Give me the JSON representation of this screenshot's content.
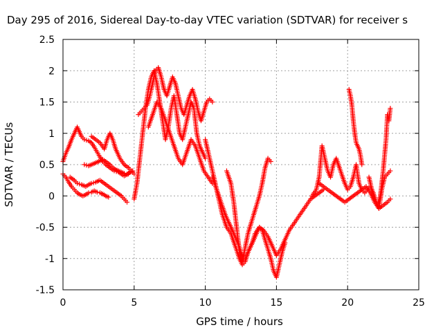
{
  "chart_data": {
    "type": "scatter",
    "title": "Day 295 of 2016, Sidereal Day-to-day VTEC variation (SDTVAR) for receiver s",
    "xlabel": "GPS time / hours",
    "ylabel": "SDTVAR / TECUs",
    "xlim": [
      0,
      25
    ],
    "ylim": [
      -1.5,
      2.5
    ],
    "xticks": [
      "0",
      "5",
      "10",
      "15",
      "20",
      "25"
    ],
    "yticks": [
      "-1.5",
      "-1",
      "-0.5",
      "0",
      "0.5",
      "1",
      "1.5",
      "2",
      "2.5"
    ],
    "grid": true,
    "marker": "plus",
    "color": "#ff0000",
    "series": [
      {
        "x": [
          0.0,
          0.2,
          0.4,
          0.6,
          0.8,
          1.0,
          1.1,
          1.3,
          1.5,
          1.8,
          2.0,
          2.2,
          2.4,
          2.6,
          2.8,
          3.0,
          3.3,
          3.6,
          3.9,
          4.1,
          4.3,
          4.6,
          4.8,
          5.0
        ],
        "y": [
          0.55,
          0.68,
          0.78,
          0.9,
          1.0,
          1.1,
          1.05,
          0.95,
          0.9,
          0.88,
          0.85,
          0.78,
          0.7,
          0.62,
          0.55,
          0.5,
          0.45,
          0.4,
          0.38,
          0.35,
          0.32,
          0.35,
          0.4,
          0.35
        ]
      },
      {
        "x": [
          0.0,
          0.2,
          0.4,
          0.6,
          0.8,
          1.0,
          1.2,
          1.4,
          1.6,
          1.8,
          2.0,
          2.2,
          2.4,
          2.6,
          2.8,
          3.0,
          3.2
        ],
        "y": [
          0.35,
          0.3,
          0.22,
          0.15,
          0.1,
          0.05,
          0.02,
          0.0,
          0.02,
          0.05,
          0.06,
          0.08,
          0.06,
          0.05,
          0.03,
          0.0,
          -0.02
        ]
      },
      {
        "x": [
          0.5,
          0.8,
          1.0,
          1.3,
          1.6,
          1.8,
          2.0,
          2.3,
          2.6,
          2.9,
          3.2,
          3.5,
          3.8,
          4.1,
          4.3,
          4.5
        ],
        "y": [
          0.3,
          0.25,
          0.2,
          0.18,
          0.15,
          0.18,
          0.2,
          0.22,
          0.25,
          0.2,
          0.15,
          0.1,
          0.05,
          0.0,
          -0.05,
          -0.1
        ]
      },
      {
        "x": [
          1.5,
          1.8,
          2.0,
          2.2,
          2.5,
          2.8,
          3.0,
          3.3,
          3.5,
          3.7,
          3.9,
          4.1,
          4.3,
          4.5,
          4.7,
          4.9
        ],
        "y": [
          0.5,
          0.48,
          0.5,
          0.52,
          0.55,
          0.58,
          0.55,
          0.5,
          0.45,
          0.42,
          0.4,
          0.38,
          0.36,
          0.35,
          0.38,
          0.4
        ]
      },
      {
        "x": [
          2.0,
          2.3,
          2.6,
          2.9,
          3.1,
          3.3,
          3.5,
          3.7,
          4.0,
          4.3,
          4.6,
          4.8
        ],
        "y": [
          0.95,
          0.9,
          0.85,
          0.75,
          0.9,
          1.0,
          0.9,
          0.75,
          0.6,
          0.5,
          0.45,
          0.4
        ]
      },
      {
        "x": [
          5.0,
          5.2,
          5.4,
          5.6,
          5.8,
          6.0,
          6.2,
          6.4,
          6.6,
          6.8,
          7.0,
          7.2,
          7.4,
          7.6,
          7.8,
          8.0,
          8.2,
          8.4,
          8.6,
          8.8,
          9.0,
          9.2,
          9.4,
          9.6,
          9.8,
          10.0
        ],
        "y": [
          -0.05,
          0.2,
          0.6,
          1.0,
          1.4,
          1.7,
          1.9,
          2.0,
          1.8,
          1.5,
          1.2,
          0.9,
          1.1,
          1.4,
          1.6,
          1.3,
          1.0,
          0.9,
          1.1,
          1.3,
          1.5,
          1.4,
          1.0,
          0.8,
          0.7,
          0.6
        ]
      },
      {
        "x": [
          5.3,
          5.5,
          5.7,
          5.9,
          6.1,
          6.3,
          6.5,
          6.7,
          6.9,
          7.1,
          7.3,
          7.5,
          7.7,
          7.9,
          8.1,
          8.3,
          8.5,
          8.7,
          8.9,
          9.1,
          9.3,
          9.5,
          9.7,
          9.9,
          10.1,
          10.3,
          10.5
        ],
        "y": [
          1.3,
          1.35,
          1.4,
          1.45,
          1.6,
          1.8,
          2.0,
          2.05,
          1.9,
          1.7,
          1.6,
          1.75,
          1.9,
          1.8,
          1.6,
          1.4,
          1.3,
          1.45,
          1.6,
          1.7,
          1.55,
          1.35,
          1.2,
          1.35,
          1.5,
          1.55,
          1.5
        ]
      },
      {
        "x": [
          6.0,
          6.3,
          6.6,
          6.9,
          7.2,
          7.5,
          7.8,
          8.1,
          8.4,
          8.7,
          9.0,
          9.3,
          9.6,
          9.9,
          10.2,
          10.5
        ],
        "y": [
          1.1,
          1.3,
          1.5,
          1.4,
          1.2,
          1.0,
          0.8,
          0.6,
          0.5,
          0.7,
          0.9,
          0.8,
          0.6,
          0.4,
          0.3,
          0.2
        ]
      },
      {
        "x": [
          10.0,
          10.3,
          10.6,
          10.9,
          11.2,
          11.5,
          11.8,
          12.1,
          12.4,
          12.6,
          12.8,
          13.0,
          13.2,
          13.4,
          13.6,
          13.8,
          14.0,
          14.2,
          14.4,
          14.6,
          14.8,
          15.0,
          15.2,
          15.4,
          15.6
        ],
        "y": [
          0.9,
          0.6,
          0.3,
          0.0,
          -0.3,
          -0.5,
          -0.6,
          -0.8,
          -1.0,
          -1.1,
          -1.05,
          -0.9,
          -0.8,
          -0.7,
          -0.6,
          -0.5,
          -0.55,
          -0.7,
          -0.85,
          -1.0,
          -1.2,
          -1.3,
          -1.1,
          -0.9,
          -0.75
        ]
      },
      {
        "x": [
          10.5,
          10.8,
          11.1,
          11.4,
          11.7,
          12.0,
          12.3,
          12.5,
          12.7,
          12.9,
          13.1,
          13.3,
          13.5,
          13.8,
          14.1,
          14.4,
          14.7,
          15.0,
          15.3,
          15.6,
          15.9,
          16.2,
          16.5,
          16.8,
          17.1,
          17.4,
          17.7,
          18.0,
          18.3
        ],
        "y": [
          0.3,
          0.1,
          -0.1,
          -0.3,
          -0.45,
          -0.6,
          -0.75,
          -0.9,
          -1.0,
          -0.95,
          -0.85,
          -0.75,
          -0.6,
          -0.5,
          -0.55,
          -0.65,
          -0.8,
          -0.95,
          -0.85,
          -0.7,
          -0.55,
          -0.45,
          -0.35,
          -0.25,
          -0.15,
          -0.05,
          0.0,
          0.05,
          0.1
        ]
      },
      {
        "x": [
          11.5,
          11.8,
          12.0,
          12.2,
          12.4,
          12.6,
          13.0,
          13.4,
          13.8,
          14.0,
          14.2,
          14.4,
          14.6
        ],
        "y": [
          0.4,
          0.2,
          -0.1,
          -0.5,
          -0.9,
          -1.05,
          -0.6,
          -0.3,
          0.0,
          0.2,
          0.45,
          0.6,
          0.55
        ]
      },
      {
        "x": [
          18.0,
          18.3,
          18.6,
          18.9,
          19.2,
          19.5,
          19.8,
          20.1,
          20.4,
          20.7,
          21.0,
          21.3,
          21.6,
          21.9,
          22.2,
          22.5,
          22.8,
          23.0
        ],
        "y": [
          0.2,
          0.15,
          0.1,
          0.05,
          0.0,
          -0.05,
          -0.1,
          -0.05,
          0.0,
          0.05,
          0.1,
          0.15,
          0.05,
          -0.1,
          -0.2,
          -0.15,
          -0.1,
          -0.05
        ]
      },
      {
        "x": [
          17.5,
          17.8,
          18.0,
          18.2,
          18.4,
          18.6,
          18.8,
          19.0,
          19.2,
          19.5,
          19.8,
          20.0,
          20.2,
          20.4,
          20.6,
          20.8,
          21.0,
          21.2,
          21.4,
          21.6,
          21.8,
          22.0,
          22.2,
          22.4,
          22.6,
          22.8,
          23.0
        ],
        "y": [
          0.0,
          0.1,
          0.3,
          0.8,
          0.6,
          0.4,
          0.3,
          0.5,
          0.6,
          0.4,
          0.2,
          0.1,
          0.15,
          0.3,
          0.5,
          0.2,
          0.1,
          0.05,
          0.1,
          0.15,
          0.05,
          -0.1,
          -0.2,
          0.1,
          0.3,
          0.35,
          0.4
        ]
      },
      {
        "x": [
          20.1,
          20.2,
          20.3,
          20.4,
          20.5,
          20.6,
          20.7,
          20.8,
          20.9,
          21.0
        ],
        "y": [
          1.7,
          1.6,
          1.45,
          1.2,
          1.0,
          0.85,
          0.8,
          0.75,
          0.65,
          0.5
        ]
      },
      {
        "x": [
          21.5,
          21.7,
          21.9,
          22.1,
          22.3,
          22.5,
          22.7,
          22.8,
          22.9,
          23.0
        ],
        "y": [
          0.3,
          0.1,
          -0.05,
          -0.15,
          0.0,
          0.4,
          0.9,
          1.3,
          1.2,
          1.4
        ]
      }
    ]
  }
}
